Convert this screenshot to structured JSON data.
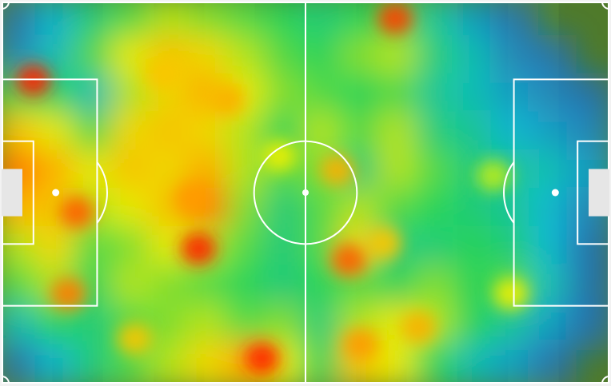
{
  "chart_data": {
    "type": "heatmap",
    "title": "",
    "xlabel": "",
    "ylabel": "",
    "pitch": {
      "length": 105,
      "width": 68,
      "grass_color": "#4f7a2a",
      "grass_stripe_color": "#5b8a31",
      "line_color": "#ffffff",
      "goal_color": "#e6e6e6"
    },
    "color_scale": [
      "#2050e0",
      "#00c8ff",
      "#20e060",
      "#f0f000",
      "#ff9a00",
      "#ff2000"
    ],
    "grid": {
      "x_bins": 16,
      "y_bins": 10,
      "values": [
        [
          0.05,
          0.2,
          0.35,
          0.45,
          0.55,
          0.5,
          0.45,
          0.4,
          0.35,
          0.4,
          0.45,
          0.3,
          0.15,
          0.05,
          0.0,
          0.0
        ],
        [
          0.1,
          0.25,
          0.45,
          0.6,
          0.7,
          0.65,
          0.55,
          0.45,
          0.4,
          0.5,
          0.55,
          0.35,
          0.25,
          0.1,
          0.05,
          0.0
        ],
        [
          0.45,
          0.4,
          0.25,
          0.55,
          0.65,
          0.75,
          0.6,
          0.5,
          0.45,
          0.4,
          0.45,
          0.3,
          0.25,
          0.15,
          0.1,
          0.05
        ],
        [
          0.7,
          0.6,
          0.45,
          0.65,
          0.7,
          0.65,
          0.55,
          0.4,
          0.55,
          0.45,
          0.55,
          0.35,
          0.3,
          0.2,
          0.15,
          0.1
        ],
        [
          0.85,
          0.75,
          0.6,
          0.7,
          0.65,
          0.75,
          0.55,
          0.45,
          0.5,
          0.35,
          0.55,
          0.45,
          0.35,
          0.3,
          0.25,
          0.15
        ],
        [
          0.75,
          0.7,
          0.55,
          0.6,
          0.7,
          0.85,
          0.5,
          0.35,
          0.45,
          0.55,
          0.45,
          0.4,
          0.35,
          0.3,
          0.2,
          0.1
        ],
        [
          0.55,
          0.65,
          0.45,
          0.5,
          0.6,
          0.55,
          0.45,
          0.35,
          0.45,
          0.65,
          0.35,
          0.35,
          0.4,
          0.35,
          0.2,
          0.05
        ],
        [
          0.45,
          0.55,
          0.4,
          0.55,
          0.5,
          0.45,
          0.4,
          0.35,
          0.4,
          0.45,
          0.4,
          0.5,
          0.4,
          0.45,
          0.25,
          0.05
        ],
        [
          0.25,
          0.4,
          0.35,
          0.45,
          0.5,
          0.55,
          0.45,
          0.5,
          0.35,
          0.55,
          0.6,
          0.55,
          0.4,
          0.3,
          0.15,
          0.05
        ],
        [
          0.05,
          0.2,
          0.35,
          0.45,
          0.55,
          0.65,
          0.75,
          0.6,
          0.4,
          0.7,
          0.6,
          0.4,
          0.25,
          0.15,
          0.05,
          0.0
        ]
      ]
    },
    "hotspots": [
      {
        "x": 5.5,
        "y": 14.0,
        "intensity": 1.0
      },
      {
        "x": 13.0,
        "y": 37.5,
        "intensity": 0.9
      },
      {
        "x": 11.5,
        "y": 52.0,
        "intensity": 0.85
      },
      {
        "x": 34.0,
        "y": 44.0,
        "intensity": 1.0
      },
      {
        "x": 33.0,
        "y": 35.0,
        "intensity": 0.8
      },
      {
        "x": 45.0,
        "y": 63.5,
        "intensity": 1.0
      },
      {
        "x": 39.0,
        "y": 17.5,
        "intensity": 0.75
      },
      {
        "x": 28.0,
        "y": 13.0,
        "intensity": 0.7
      },
      {
        "x": 58.0,
        "y": 30.0,
        "intensity": 0.75
      },
      {
        "x": 60.0,
        "y": 46.0,
        "intensity": 0.9
      },
      {
        "x": 68.0,
        "y": 3.0,
        "intensity": 0.95
      },
      {
        "x": 66.0,
        "y": 43.0,
        "intensity": 0.7
      },
      {
        "x": 72.0,
        "y": 58.0,
        "intensity": 0.75
      },
      {
        "x": 62.0,
        "y": 61.0,
        "intensity": 0.8
      },
      {
        "x": 85.0,
        "y": 31.0,
        "intensity": 0.55
      },
      {
        "x": 88.0,
        "y": 52.0,
        "intensity": 0.6
      },
      {
        "x": 23.0,
        "y": 60.0,
        "intensity": 0.7
      },
      {
        "x": 48.0,
        "y": 27.5,
        "intensity": 0.6
      }
    ]
  }
}
